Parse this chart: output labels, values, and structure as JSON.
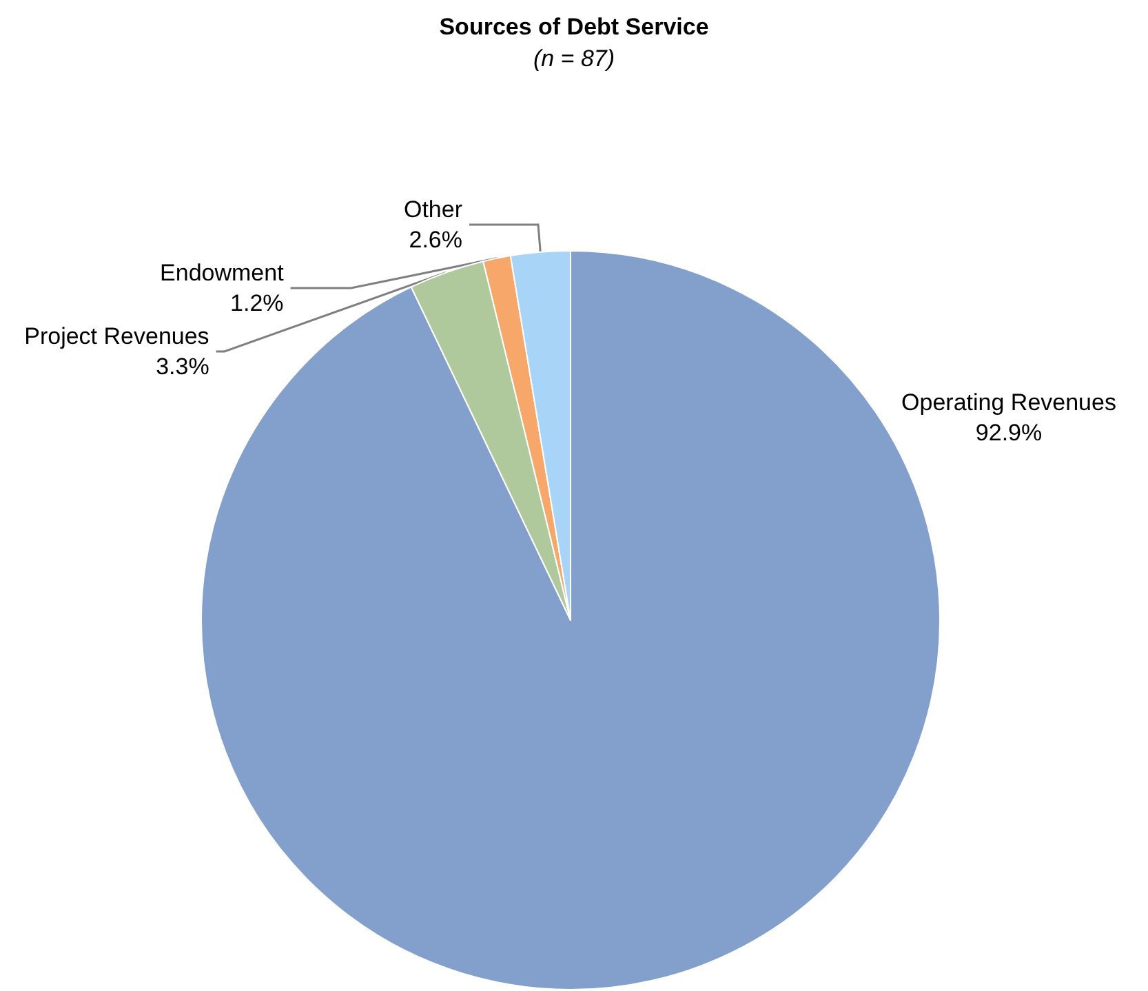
{
  "chart_data": {
    "type": "pie",
    "title": "Sources of Debt Service",
    "subtitle": "(n = 87)",
    "categories": [
      "Operating Revenues",
      "Project Revenues",
      "Endowment",
      "Other"
    ],
    "values": [
      92.9,
      3.3,
      1.2,
      2.6
    ],
    "value_labels": [
      "92.9%",
      "3.3%",
      "1.2%",
      "2.6%"
    ],
    "colors": [
      "#839fcb",
      "#b0c99c",
      "#f6a769",
      "#a7d4f7"
    ],
    "legend": false
  }
}
